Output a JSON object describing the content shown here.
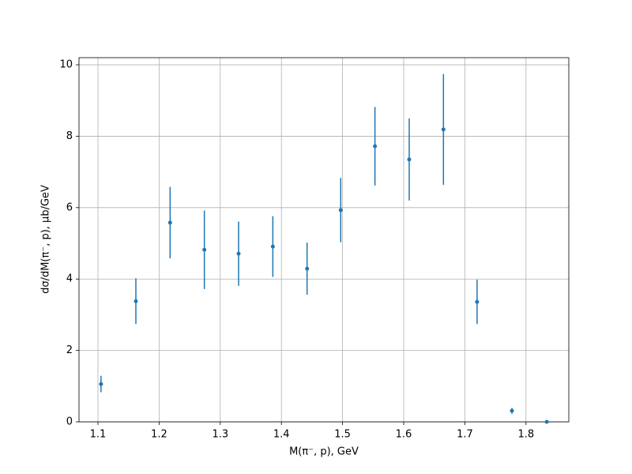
{
  "chart_data": {
    "type": "scatter",
    "xlabel": "M(π⁻, p), GeV",
    "ylabel": "dσ/dM(π⁻, p), µb/GeV",
    "x": [
      1.105,
      1.162,
      1.218,
      1.274,
      1.33,
      1.386,
      1.442,
      1.497,
      1.553,
      1.609,
      1.665,
      1.72,
      1.777,
      1.834
    ],
    "values": [
      1.06,
      3.38,
      5.58,
      4.82,
      4.71,
      4.91,
      4.29,
      5.93,
      7.72,
      7.35,
      8.19,
      3.36,
      0.31,
      0.0
    ],
    "errors": [
      0.23,
      0.64,
      1.0,
      1.1,
      0.9,
      0.85,
      0.73,
      0.9,
      1.1,
      1.15,
      1.55,
      0.62,
      0.08,
      0.01
    ],
    "color": "#1f77b4",
    "xlim": [
      1.069,
      1.87
    ],
    "ylim": [
      0,
      10.2
    ],
    "xticks": [
      1.1,
      1.2,
      1.3,
      1.4,
      1.5,
      1.6,
      1.7,
      1.8
    ],
    "yticks": [
      0,
      2,
      4,
      6,
      8,
      10
    ],
    "grid": true
  }
}
